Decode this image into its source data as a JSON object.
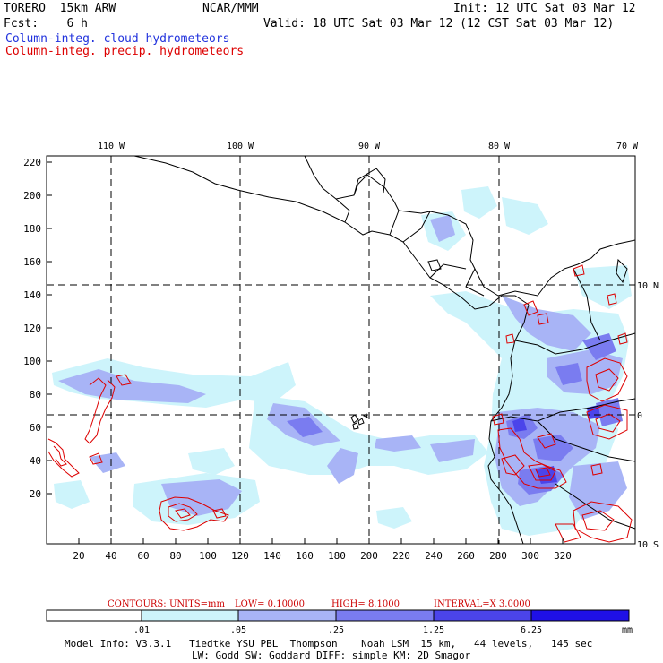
{
  "header": {
    "model": "TORERO  15km ARW",
    "org": "NCAR/MMM",
    "init": "Init: 12 UTC Sat 03 Mar 12",
    "fcst": "Fcst:    6 h",
    "valid": "Valid: 18 UTC Sat 03 Mar 12 (12 CST Sat 03 Mar 12)",
    "field1": "Column-integ. cloud hydrometeors",
    "field2": "Column-integ. precip. hydrometeors",
    "field1_color": "#2233dd",
    "field2_color": "#dd0000"
  },
  "map": {
    "top_lon_labels": [
      "110 W",
      "100 W",
      "90 W",
      "80 W",
      "70 W"
    ],
    "right_lat_labels": [
      "10 N",
      "0",
      "10 S"
    ],
    "y_ticks": [
      "220",
      "200",
      "180",
      "160",
      "140",
      "120",
      "100",
      "80",
      "60",
      "40",
      "20"
    ],
    "x_ticks": [
      "20",
      "40",
      "60",
      "80",
      "100",
      "120",
      "140",
      "160",
      "180",
      "200",
      "220",
      "240",
      "260",
      "280",
      "300",
      "320"
    ]
  },
  "contours": {
    "label": "CONTOURS:",
    "units": "UNITS=mm",
    "low": "LOW= 0.10000",
    "high": "HIGH=  8.1000",
    "interval": "INTERVAL=X  3.0000",
    "color": "#cc0000"
  },
  "colorbar": {
    "ticks": [
      ".01",
      ".05",
      ".25",
      "1.25",
      "6.25"
    ],
    "unit": "mm",
    "colors": [
      "#ffffff",
      "#cdf4fb",
      "#a8b4f6",
      "#7a7cf0",
      "#4b44ea",
      "#1f10e6"
    ]
  },
  "footer": {
    "line1": "Model Info: V3.3.1   Tiedtke YSU PBL  Thompson    Noah LSM  15 km,   44 levels,   145 sec",
    "line2": "LW: Godd SW: Goddard DIFF: simple KM: 2D Smagor"
  }
}
